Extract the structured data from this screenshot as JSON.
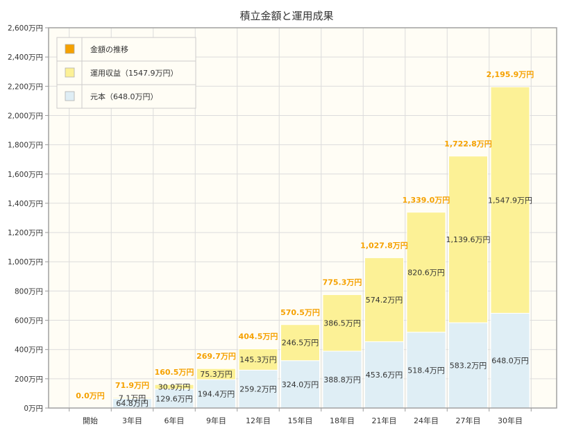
{
  "chart_data": {
    "type": "bar",
    "stacked": true,
    "title": "積立金額と運用成果",
    "categories": [
      "開始",
      "3年目",
      "6年目",
      "9年目",
      "12年目",
      "15年目",
      "18年目",
      "21年目",
      "24年目",
      "27年目",
      "30年目"
    ],
    "series": [
      {
        "name": "元本（648.0万円）",
        "color": "#dfeef5",
        "values": [
          0,
          64.8,
          129.6,
          194.4,
          259.2,
          324.0,
          388.8,
          453.6,
          518.4,
          583.2,
          648.0
        ],
        "labels": [
          "",
          "64.8万円",
          "129.6万円",
          "194.4万円",
          "259.2万円",
          "324.0万円",
          "388.8万円",
          "453.6万円",
          "518.4万円",
          "583.2万円",
          "648.0万円"
        ]
      },
      {
        "name": "運用収益（1547.9万円）",
        "color": "#fcf196",
        "values": [
          0,
          7.1,
          30.9,
          75.3,
          145.3,
          246.5,
          386.5,
          574.2,
          820.6,
          1139.6,
          1547.9
        ],
        "labels": [
          "",
          "7.1万円",
          "30.9万円",
          "75.3万円",
          "145.3万円",
          "246.5万円",
          "386.5万円",
          "574.2万円",
          "820.6万円",
          "1,139.6万円",
          "1,547.9万円"
        ]
      }
    ],
    "totals": {
      "name": "金額の推移",
      "color": "#f5a100",
      "values": [
        0.0,
        71.9,
        160.5,
        269.7,
        404.5,
        570.5,
        775.3,
        1027.8,
        1339.0,
        1722.8,
        2195.9
      ],
      "labels": [
        "0.0万円",
        "71.9万円",
        "160.5万円",
        "269.7万円",
        "404.5万円",
        "570.5万円",
        "775.3万円",
        "1,027.8万円",
        "1,339.0万円",
        "1,722.8万円",
        "2,195.9万円"
      ]
    },
    "ylim": [
      0,
      2600
    ],
    "yticks": [
      0,
      200,
      400,
      600,
      800,
      1000,
      1200,
      1400,
      1600,
      1800,
      2000,
      2200,
      2400,
      2600
    ],
    "ytick_labels": [
      "0万円",
      "200万円",
      "400万円",
      "600万円",
      "800万円",
      "1,000万円",
      "1,200万円",
      "1,400万円",
      "1,600万円",
      "1,800万円",
      "2,000万円",
      "2,200万円",
      "2,400万円",
      "2,600万円"
    ],
    "xlabel": "",
    "ylabel": "",
    "grid": true,
    "legend_position": "top-left"
  }
}
